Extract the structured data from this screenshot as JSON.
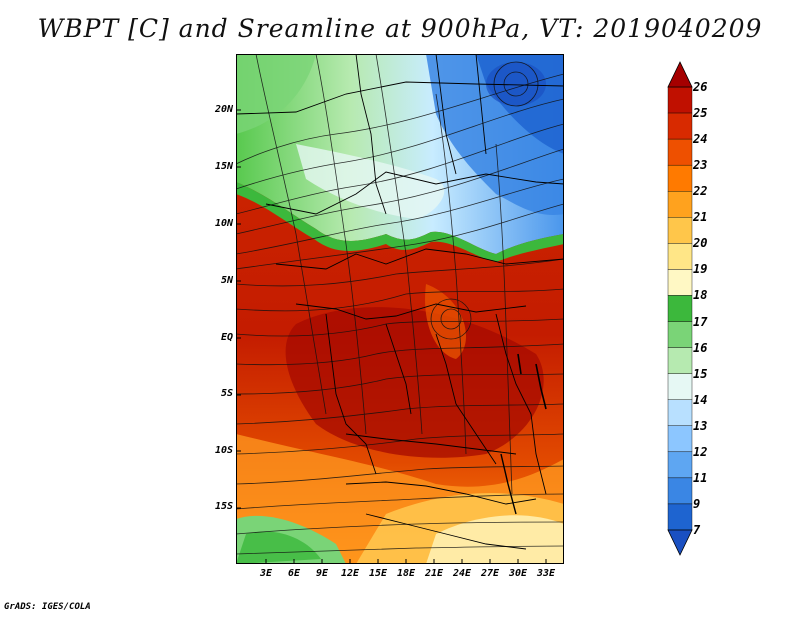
{
  "title": "WBPT [C] and Sreamline at 900hPa, VT: 2019040209",
  "footer": "GrADS: IGES/COLA",
  "map": {
    "lon_labels": [
      "3E",
      "6E",
      "9E",
      "12E",
      "15E",
      "18E",
      "21E",
      "24E",
      "27E",
      "30E",
      "33E"
    ],
    "lat_labels": [
      "20N",
      "15N",
      "10N",
      "5N",
      "EQ",
      "5S",
      "10S",
      "15S"
    ]
  },
  "colorbar": {
    "labels": [
      "26",
      "25",
      "24",
      "23",
      "22",
      "21",
      "20",
      "19",
      "18",
      "17",
      "16",
      "15",
      "14",
      "13",
      "12",
      "11",
      "9",
      "7"
    ],
    "colors": [
      "#a50000",
      "#c01000",
      "#d82a00",
      "#ee5000",
      "#ff7a00",
      "#ffa21e",
      "#ffc64a",
      "#ffe687",
      "#fff8c4",
      "#3cb83c",
      "#7ad477",
      "#b6eab0",
      "#e6f8f4",
      "#b8e0ff",
      "#8cc6ff",
      "#5ea6f2",
      "#3a86e4",
      "#1e64d0",
      "#1a50c2"
    ]
  }
}
